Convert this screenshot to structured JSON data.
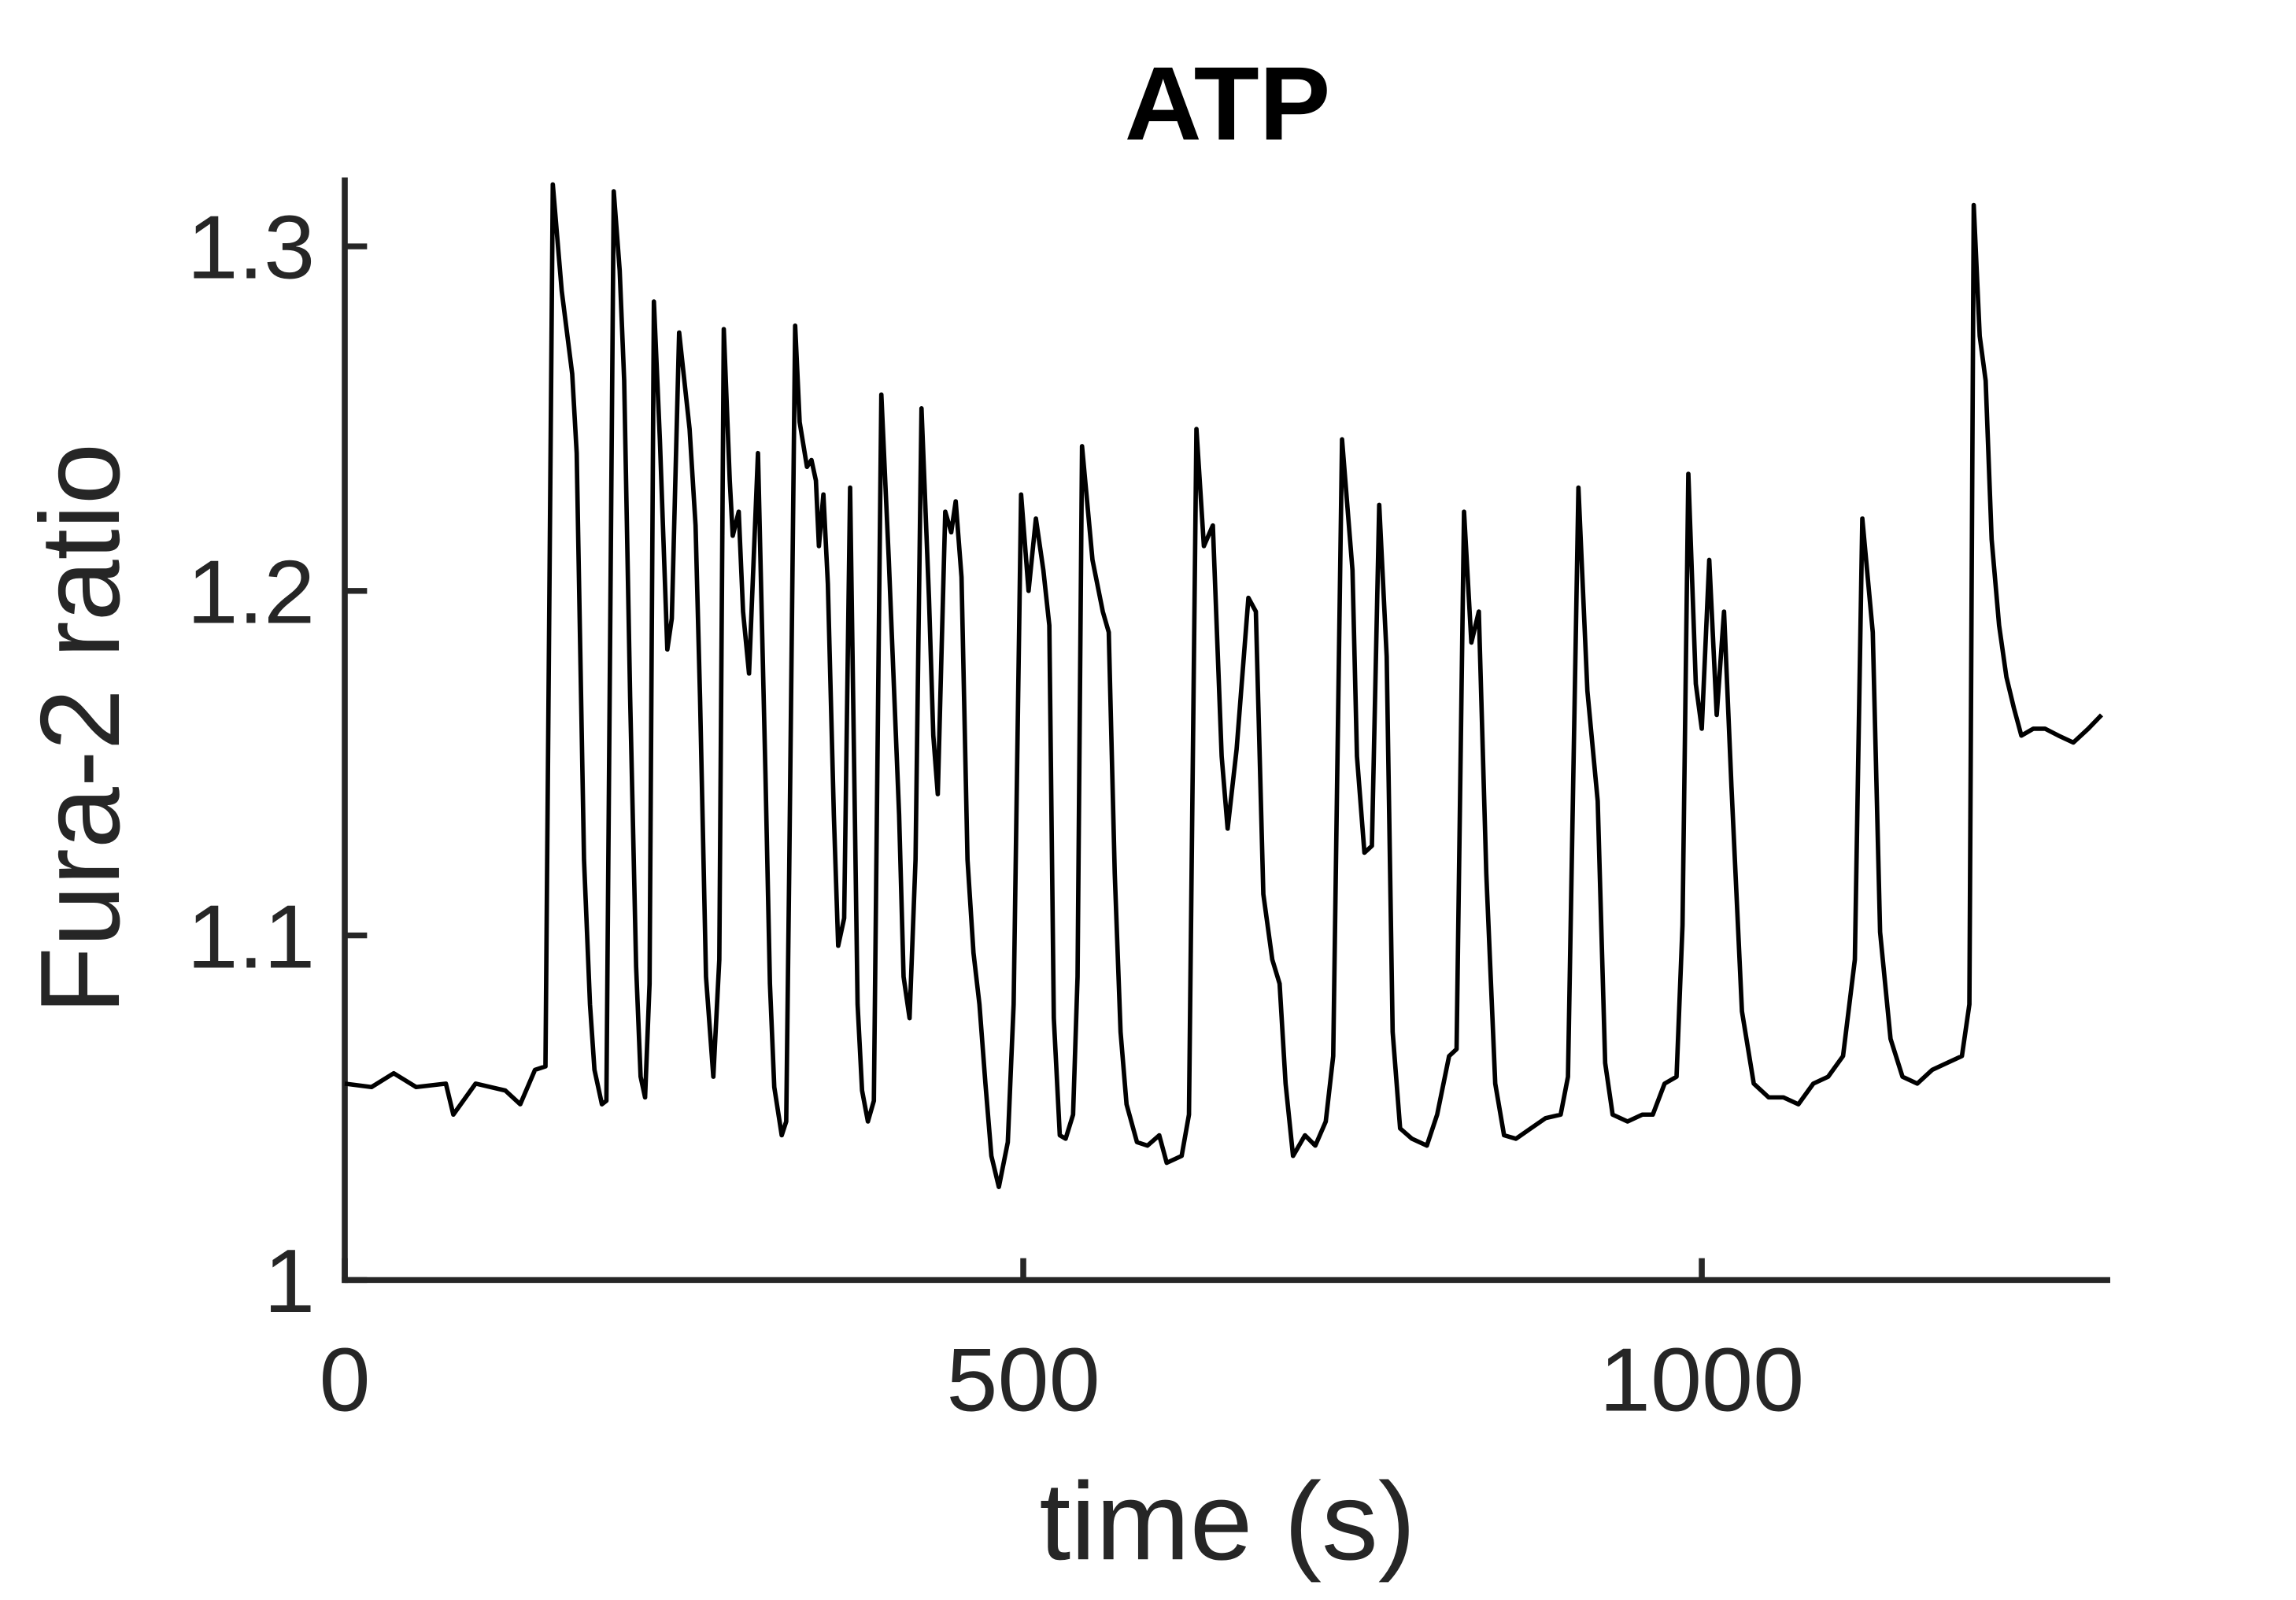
{
  "chart_data": {
    "type": "line",
    "title": "ATP",
    "xlabel": "time (s)",
    "ylabel": "Fura-2 ratio",
    "xlim": [
      0,
      1301
    ],
    "ylim": [
      1,
      1.32
    ],
    "xticks": [
      0,
      500,
      1000
    ],
    "yticks": [
      1,
      1.1,
      1.2,
      1.3
    ],
    "grid": false,
    "series": [
      {
        "name": "ATP",
        "color": "#000000",
        "x": [
          0,
          19.7,
          36.1,
          52.6,
          74.5,
          80,
          96.4,
          118.3,
          129.3,
          140.2,
          147.9,
          153.3,
          159.9,
          167.6,
          170.9,
          176.3,
          180.7,
          184,
          189.5,
          192.8,
          198.2,
          202.6,
          205.9,
          210.3,
          214.7,
          218,
          221.3,
          224.6,
          227.8,
          232.2,
          237.7,
          241,
          246.4,
          249.7,
          254.1,
          258.5,
          261.8,
          266.2,
          271.6,
          276,
          279.3,
          283.7,
          285.9,
          290.3,
          293.5,
          297.9,
          304.5,
          310,
          313.3,
          316.5,
          322,
          325.3,
          327.5,
          331.9,
          335.2,
          340.6,
          343.9,
          347.2,
          349.4,
          352.7,
          356,
          360.4,
          363.6,
          368,
          372.4,
          377.9,
          381.2,
          385.5,
          389.9,
          395.4,
          400.9,
          408.5,
          411.8,
          416.2,
          420.6,
          425,
          430.5,
          433.7,
          437,
          442.5,
          446.9,
          450.2,
          454.5,
          458.9,
          463.3,
          467.7,
          472.1,
          476.5,
          482,
          488.6,
          492.9,
          498.4,
          503.9,
          509.3,
          514.8,
          519.2,
          522.5,
          526.9,
          531.2,
          536.7,
          540,
          543.3,
          551,
          558.6,
          563,
          567.4,
          571.7,
          576.1,
          583.8,
          591.5,
          600.2,
          605.7,
          616.7,
          622.1,
          627.6,
          633.1,
          639.7,
          646.2,
          650.6,
          657.2,
          665.9,
          671.4,
          676.9,
          683.5,
          688.9,
          693.3,
          698.8,
          707.6,
          715.2,
          722.9,
          728.4,
          734.9,
          742.6,
          745.9,
          751.4,
          756.9,
          762.3,
          767.8,
          772.2,
          777.7,
          786.4,
          797.4,
          805,
          813.8,
          819.3,
          824.8,
          830.2,
          835.7,
          841.2,
          847.8,
          854.3,
          863.1,
          874,
          885,
          896,
          901.4,
          909.1,
          915.7,
          923.3,
          928.8,
          934.3,
          945.3,
          956.2,
          963.9,
          972.6,
          981.4,
          985.8,
          990.1,
          995.6,
          1000,
          1005.5,
          1011,
          1016.4,
          1021.9,
          1029.6,
          1038.3,
          1049.3,
          1060.2,
          1071.2,
          1082.2,
          1093.1,
          1104.1,
          1112.8,
          1118.3,
          1126,
          1131.4,
          1139.1,
          1147.9,
          1158.8,
          1169.8,
          1180.7,
          1191.7,
          1197.2,
          1200.4,
          1204.8,
          1209.2,
          1213.6,
          1219.1,
          1224.5,
          1230,
          1235.5,
          1244.3,
          1253,
          1262.9,
          1273.8,
          1284.8,
          1294.6
        ],
        "values": [
          1.057,
          1.056,
          1.06,
          1.056,
          1.057,
          1.048,
          1.057,
          1.055,
          1.051,
          1.061,
          1.062,
          1.318,
          1.287,
          1.263,
          1.24,
          1.122,
          1.08,
          1.061,
          1.051,
          1.052,
          1.316,
          1.293,
          1.261,
          1.169,
          1.091,
          1.059,
          1.053,
          1.086,
          1.284,
          1.244,
          1.183,
          1.192,
          1.275,
          1.263,
          1.247,
          1.219,
          1.169,
          1.088,
          1.059,
          1.093,
          1.276,
          1.232,
          1.216,
          1.223,
          1.194,
          1.176,
          1.24,
          1.147,
          1.086,
          1.056,
          1.042,
          1.046,
          1.118,
          1.277,
          1.249,
          1.236,
          1.238,
          1.232,
          1.213,
          1.228,
          1.202,
          1.135,
          1.097,
          1.105,
          1.23,
          1.08,
          1.055,
          1.046,
          1.052,
          1.257,
          1.209,
          1.135,
          1.088,
          1.076,
          1.122,
          1.253,
          1.198,
          1.158,
          1.141,
          1.223,
          1.217,
          1.226,
          1.204,
          1.122,
          1.095,
          1.08,
          1.057,
          1.036,
          1.027,
          1.04,
          1.08,
          1.228,
          1.2,
          1.221,
          1.206,
          1.19,
          1.076,
          1.042,
          1.041,
          1.048,
          1.088,
          1.242,
          1.209,
          1.194,
          1.188,
          1.118,
          1.072,
          1.051,
          1.04,
          1.039,
          1.042,
          1.034,
          1.036,
          1.048,
          1.247,
          1.213,
          1.219,
          1.152,
          1.131,
          1.154,
          1.198,
          1.194,
          1.112,
          1.093,
          1.086,
          1.057,
          1.036,
          1.042,
          1.039,
          1.046,
          1.065,
          1.244,
          1.206,
          1.152,
          1.124,
          1.126,
          1.225,
          1.181,
          1.072,
          1.044,
          1.041,
          1.039,
          1.048,
          1.065,
          1.067,
          1.223,
          1.185,
          1.194,
          1.118,
          1.057,
          1.042,
          1.041,
          1.044,
          1.047,
          1.048,
          1.059,
          1.23,
          1.171,
          1.139,
          1.063,
          1.048,
          1.046,
          1.048,
          1.048,
          1.057,
          1.059,
          1.103,
          1.234,
          1.173,
          1.16,
          1.209,
          1.164,
          1.194,
          1.143,
          1.078,
          1.057,
          1.053,
          1.053,
          1.051,
          1.057,
          1.059,
          1.065,
          1.093,
          1.221,
          1.188,
          1.101,
          1.07,
          1.059,
          1.057,
          1.061,
          1.063,
          1.065,
          1.08,
          1.312,
          1.274,
          1.261,
          1.215,
          1.19,
          1.175,
          1.166,
          1.158,
          1.16,
          1.16,
          1.158,
          1.156,
          1.16,
          1.164
        ]
      }
    ]
  }
}
